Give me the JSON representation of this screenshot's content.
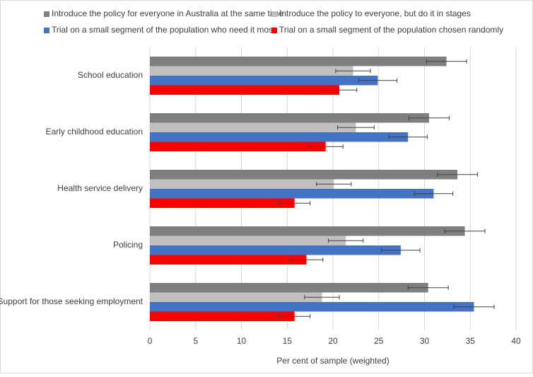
{
  "chart_data": {
    "type": "bar",
    "orientation": "horizontal",
    "x_label": "Per cent of sample (weighted)",
    "categories": [
      "School education",
      "Early childhood education",
      "Health service delivery",
      "Policing",
      "Support for those seeking employment"
    ],
    "series": [
      {
        "name": "Introduce the policy for everyone in Australia at the same time",
        "color": "#7f7f7f",
        "values": [
          32.4,
          30.5,
          33.6,
          34.4,
          30.4
        ],
        "errors": [
          2.2,
          2.2,
          2.2,
          2.2,
          2.2
        ]
      },
      {
        "name": "Introduce the policy to everyone, but do it in stages",
        "color": "#bfbfbf",
        "values": [
          22.2,
          22.5,
          20.1,
          21.4,
          18.8
        ],
        "errors": [
          1.9,
          2.0,
          1.9,
          1.9,
          1.9
        ]
      },
      {
        "name": "Trial on a small segment of the population who need it most",
        "color": "#4472c4",
        "values": [
          24.9,
          28.2,
          31.0,
          27.4,
          35.4
        ],
        "errors": [
          2.1,
          2.1,
          2.1,
          2.1,
          2.2
        ]
      },
      {
        "name": "Trial on a small segment of the population chosen randomly",
        "color": "#ff0000",
        "values": [
          20.7,
          19.2,
          15.8,
          17.1,
          15.8
        ],
        "errors": [
          1.9,
          1.9,
          1.7,
          1.8,
          1.7
        ]
      }
    ],
    "xlim": [
      0,
      40
    ],
    "xticks": [
      0,
      5,
      10,
      15,
      20,
      25,
      30,
      35,
      40
    ],
    "grid": true
  }
}
